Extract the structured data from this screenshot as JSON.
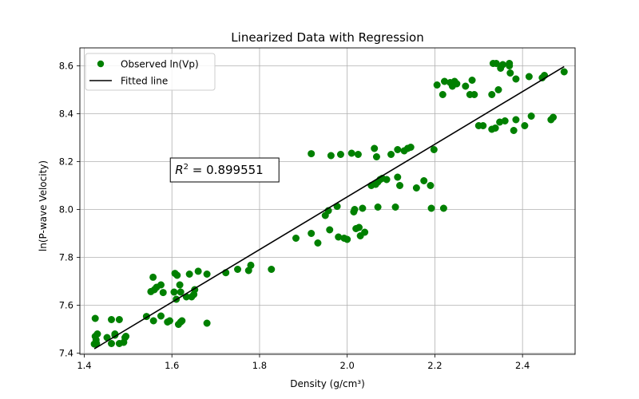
{
  "chart_data": {
    "type": "scatter",
    "title": "Linearized Data with Regression",
    "xlabel": "Density (g/cm³)",
    "ylabel": "ln(P-wave Velocity)",
    "xlim": [
      1.39,
      2.52
    ],
    "ylim": [
      7.395,
      8.675
    ],
    "xticks": [
      1.4,
      1.6,
      1.8,
      2.0,
      2.2,
      2.4
    ],
    "xtick_labels": [
      "1.4",
      "1.6",
      "1.8",
      "2.0",
      "2.2",
      "2.4"
    ],
    "yticks": [
      7.4,
      7.6,
      7.8,
      8.0,
      8.2,
      8.4,
      8.6
    ],
    "ytick_labels": [
      "7.4",
      "7.6",
      "7.8",
      "8.0",
      "8.2",
      "8.4",
      "8.6"
    ],
    "grid": true,
    "legend_position": "top-left",
    "legend": [
      {
        "label": "Observed ln(Vp)",
        "kind": "marker",
        "color": "#008000"
      },
      {
        "label": "Fitted line",
        "kind": "line",
        "color": "#000000"
      }
    ],
    "annotation": {
      "r2_value": "0.899551",
      "x": 1.6,
      "y": 8.165
    },
    "series": [
      {
        "name": "Observed ln(Vp)",
        "kind": "scatter",
        "color": "#008000",
        "points": [
          [
            1.425,
            7.545
          ],
          [
            1.425,
            7.47
          ],
          [
            1.43,
            7.48
          ],
          [
            1.427,
            7.455
          ],
          [
            1.423,
            7.438
          ],
          [
            1.428,
            7.44
          ],
          [
            1.452,
            7.465
          ],
          [
            1.462,
            7.54
          ],
          [
            1.47,
            7.48
          ],
          [
            1.47,
            7.475
          ],
          [
            1.48,
            7.54
          ],
          [
            1.48,
            7.44
          ],
          [
            1.462,
            7.44
          ],
          [
            1.49,
            7.445
          ],
          [
            1.493,
            7.465
          ],
          [
            1.495,
            7.47
          ],
          [
            1.542,
            7.553
          ],
          [
            1.552,
            7.657
          ],
          [
            1.557,
            7.717
          ],
          [
            1.56,
            7.665
          ],
          [
            1.565,
            7.675
          ],
          [
            1.575,
            7.685
          ],
          [
            1.558,
            7.535
          ],
          [
            1.58,
            7.653
          ],
          [
            1.575,
            7.555
          ],
          [
            1.59,
            7.53
          ],
          [
            1.595,
            7.535
          ],
          [
            1.605,
            7.655
          ],
          [
            1.607,
            7.733
          ],
          [
            1.61,
            7.625
          ],
          [
            1.612,
            7.725
          ],
          [
            1.615,
            7.52
          ],
          [
            1.618,
            7.685
          ],
          [
            1.62,
            7.655
          ],
          [
            1.62,
            7.53
          ],
          [
            1.623,
            7.535
          ],
          [
            1.633,
            7.635
          ],
          [
            1.64,
            7.73
          ],
          [
            1.645,
            7.635
          ],
          [
            1.65,
            7.645
          ],
          [
            1.652,
            7.665
          ],
          [
            1.66,
            7.742
          ],
          [
            1.68,
            7.73
          ],
          [
            1.68,
            7.525
          ],
          [
            1.723,
            7.736
          ],
          [
            1.75,
            7.75
          ],
          [
            1.775,
            7.745
          ],
          [
            1.78,
            7.767
          ],
          [
            1.827,
            7.75
          ],
          [
            1.883,
            7.88
          ],
          [
            1.918,
            7.9
          ],
          [
            1.933,
            7.86
          ],
          [
            1.918,
            8.233
          ],
          [
            1.95,
            7.975
          ],
          [
            1.957,
            7.995
          ],
          [
            1.96,
            7.915
          ],
          [
            1.963,
            8.225
          ],
          [
            1.977,
            8.013
          ],
          [
            1.98,
            7.885
          ],
          [
            1.985,
            8.23
          ],
          [
            1.993,
            7.88
          ],
          [
            2.0,
            7.875
          ],
          [
            2.01,
            8.235
          ],
          [
            2.015,
            7.99
          ],
          [
            2.017,
            8.0
          ],
          [
            2.02,
            7.92
          ],
          [
            2.027,
            7.925
          ],
          [
            2.03,
            7.89
          ],
          [
            2.025,
            8.23
          ],
          [
            2.035,
            8.005
          ],
          [
            2.04,
            7.905
          ],
          [
            2.055,
            8.1
          ],
          [
            2.062,
            8.255
          ],
          [
            2.065,
            8.105
          ],
          [
            2.067,
            8.22
          ],
          [
            2.07,
            8.115
          ],
          [
            2.075,
            8.125
          ],
          [
            2.07,
            8.01
          ],
          [
            2.08,
            8.13
          ],
          [
            2.09,
            8.125
          ],
          [
            2.1,
            8.23
          ],
          [
            2.11,
            8.01
          ],
          [
            2.115,
            8.135
          ],
          [
            2.115,
            8.25
          ],
          [
            2.12,
            8.1
          ],
          [
            2.13,
            8.245
          ],
          [
            2.138,
            8.255
          ],
          [
            2.145,
            8.26
          ],
          [
            2.158,
            8.09
          ],
          [
            2.175,
            8.12
          ],
          [
            2.192,
            8.005
          ],
          [
            2.19,
            8.1
          ],
          [
            2.198,
            8.25
          ],
          [
            2.22,
            8.005
          ],
          [
            2.205,
            8.52
          ],
          [
            2.218,
            8.48
          ],
          [
            2.222,
            8.535
          ],
          [
            2.235,
            8.53
          ],
          [
            2.24,
            8.515
          ],
          [
            2.245,
            8.535
          ],
          [
            2.25,
            8.525
          ],
          [
            2.27,
            8.515
          ],
          [
            2.28,
            8.48
          ],
          [
            2.285,
            8.54
          ],
          [
            2.29,
            8.48
          ],
          [
            2.3,
            8.35
          ],
          [
            2.31,
            8.35
          ],
          [
            2.33,
            8.48
          ],
          [
            2.33,
            8.335
          ],
          [
            2.333,
            8.61
          ],
          [
            2.338,
            8.34
          ],
          [
            2.34,
            8.61
          ],
          [
            2.345,
            8.5
          ],
          [
            2.348,
            8.365
          ],
          [
            2.35,
            8.59
          ],
          [
            2.355,
            8.605
          ],
          [
            2.36,
            8.37
          ],
          [
            2.37,
            8.61
          ],
          [
            2.37,
            8.6
          ],
          [
            2.372,
            8.57
          ],
          [
            2.38,
            8.33
          ],
          [
            2.385,
            8.375
          ],
          [
            2.385,
            8.545
          ],
          [
            2.405,
            8.35
          ],
          [
            2.415,
            8.555
          ],
          [
            2.42,
            8.39
          ],
          [
            2.445,
            8.55
          ],
          [
            2.45,
            8.56
          ],
          [
            2.465,
            8.375
          ],
          [
            2.47,
            8.385
          ],
          [
            2.495,
            8.575
          ]
        ]
      },
      {
        "name": "Fitted line",
        "kind": "line",
        "color": "#000000",
        "points": [
          [
            1.423,
            7.418
          ],
          [
            2.495,
            8.597
          ]
        ]
      }
    ]
  }
}
